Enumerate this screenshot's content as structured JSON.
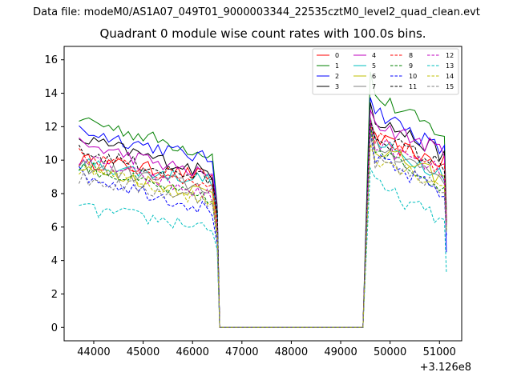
{
  "header": {
    "suptitle": "Data file: modeM0/AS1A07_049T01_9000003344_22535cztM0_level2_quad_clean.evt",
    "title": "Quadrant 0 module wise count rates with 100.0s bins."
  },
  "chart_data": {
    "type": "line",
    "title": "Quadrant 0 module wise count rates with 100.0s bins.",
    "xlabel": "",
    "ylabel": "",
    "x_offset_label": "+3.126e8",
    "xlim": [
      43400,
      51450
    ],
    "ylim": [
      -0.8,
      16.8
    ],
    "xticks": [
      44000,
      45000,
      46000,
      47000,
      48000,
      49000,
      50000,
      51000
    ],
    "xtick_labels": [
      "44000",
      "45000",
      "46000",
      "47000",
      "48000",
      "49000",
      "50000",
      "51000"
    ],
    "yticks": [
      0,
      2,
      4,
      6,
      8,
      10,
      12,
      14,
      16
    ],
    "ytick_labels": [
      "0",
      "2",
      "4",
      "6",
      "8",
      "10",
      "12",
      "14",
      "16"
    ],
    "legend_position": "top-right",
    "segments": {
      "seg1_x_start": 43700,
      "seg1_x_end": 46400,
      "step": 100,
      "drop_x": 46500,
      "gap_start": 46550,
      "gap_end": 49450,
      "rise_x": 49600,
      "seg2_x_start": 49700,
      "seg2_x_end": 51100
    },
    "series": [
      {
        "name": "0",
        "color": "#ff0000",
        "dash": "solid",
        "seg1_level": 10.0,
        "seg1_end": 9.0,
        "seg2_level": 11.2,
        "seg2_end": 9.8,
        "last": 6.5
      },
      {
        "name": "1",
        "color": "#008000",
        "dash": "solid",
        "seg1_level": 12.5,
        "seg1_end": 10.3,
        "seg2_level": 13.8,
        "seg2_end": 11.5,
        "last": 7.0
      },
      {
        "name": "2",
        "color": "#0000ff",
        "dash": "solid",
        "seg1_level": 11.8,
        "seg1_end": 10.0,
        "seg2_level": 13.0,
        "seg2_end": 10.5,
        "last": 4.5
      },
      {
        "name": "3",
        "color": "#000000",
        "dash": "solid",
        "seg1_level": 11.3,
        "seg1_end": 9.2,
        "seg2_level": 12.5,
        "seg2_end": 10.3,
        "last": 6.2
      },
      {
        "name": "4",
        "color": "#bf00bf",
        "dash": "solid",
        "seg1_level": 11.0,
        "seg1_end": 9.0,
        "seg2_level": 12.2,
        "seg2_end": 10.5,
        "last": 6.5
      },
      {
        "name": "5",
        "color": "#00bfbf",
        "dash": "solid",
        "seg1_level": 9.8,
        "seg1_end": 8.8,
        "seg2_level": 11.0,
        "seg2_end": 9.2,
        "last": 6.0
      },
      {
        "name": "6",
        "color": "#bfbf00",
        "dash": "solid",
        "seg1_level": 9.5,
        "seg1_end": 8.0,
        "seg2_level": 10.8,
        "seg2_end": 8.8,
        "last": 5.8
      },
      {
        "name": "7",
        "color": "#808080",
        "dash": "solid",
        "seg1_level": 9.7,
        "seg1_end": 8.3,
        "seg2_level": 10.9,
        "seg2_end": 9.0,
        "last": 6.0
      },
      {
        "name": "8",
        "color": "#ff0000",
        "dash": "dashed",
        "seg1_level": 10.3,
        "seg1_end": 8.5,
        "seg2_level": 11.5,
        "seg2_end": 9.5,
        "last": 6.2
      },
      {
        "name": "9",
        "color": "#008000",
        "dash": "dashed",
        "seg1_level": 9.7,
        "seg1_end": 7.5,
        "seg2_level": 10.5,
        "seg2_end": 8.5,
        "last": 5.8
      },
      {
        "name": "10",
        "color": "#0000ff",
        "dash": "dashed",
        "seg1_level": 9.2,
        "seg1_end": 7.0,
        "seg2_level": 10.0,
        "seg2_end": 8.0,
        "last": 5.5
      },
      {
        "name": "11",
        "color": "#000000",
        "dash": "dashed",
        "seg1_level": 10.5,
        "seg1_end": 8.8,
        "seg2_level": 11.5,
        "seg2_end": 9.6,
        "last": 6.3
      },
      {
        "name": "12",
        "color": "#bf00bf",
        "dash": "dashed",
        "seg1_level": 10.1,
        "seg1_end": 7.8,
        "seg2_level": 11.0,
        "seg2_end": 9.2,
        "last": 6.0
      },
      {
        "name": "13",
        "color": "#00bfbf",
        "dash": "dashed",
        "seg1_level": 7.1,
        "seg1_end": 6.0,
        "seg2_level": 8.5,
        "seg2_end": 6.3,
        "last": 3.3
      },
      {
        "name": "14",
        "color": "#bfbf00",
        "dash": "dashed",
        "seg1_level": 9.6,
        "seg1_end": 7.5,
        "seg2_level": 10.2,
        "seg2_end": 8.5,
        "last": 5.8
      },
      {
        "name": "15",
        "color": "#808080",
        "dash": "dashed",
        "seg1_level": 8.9,
        "seg1_end": 7.6,
        "seg2_level": 10.0,
        "seg2_end": 8.4,
        "last": 5.6
      }
    ]
  }
}
